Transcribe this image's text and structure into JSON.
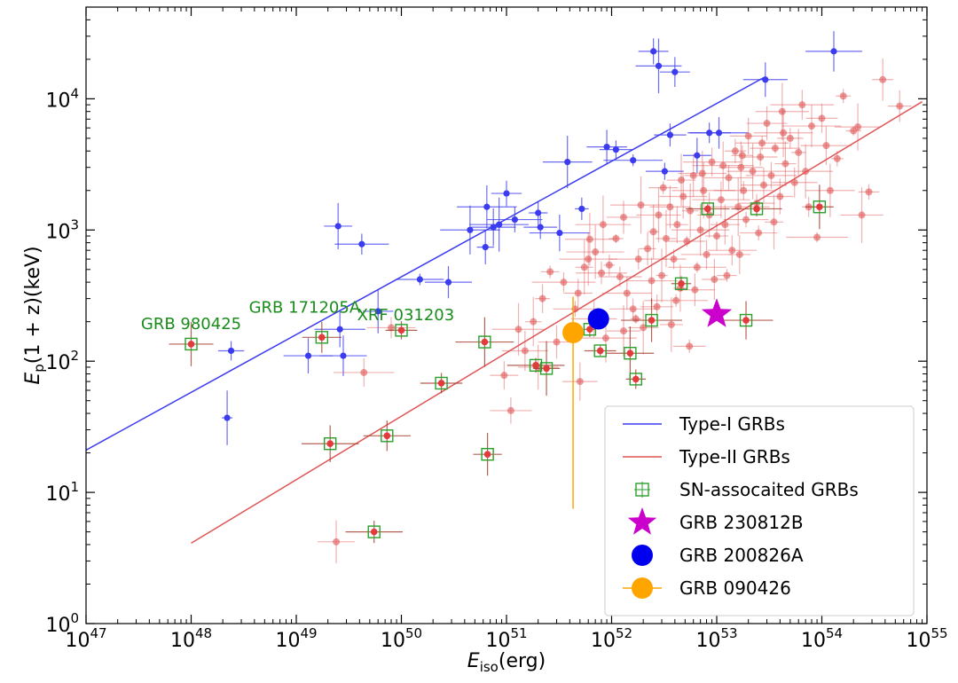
{
  "chart_data": {
    "type": "scatter",
    "x_scale": "log",
    "y_scale": "log",
    "xlim": [
      1e+47,
      1e+55
    ],
    "ylim": [
      1,
      50000
    ],
    "grid": false,
    "legend_position": "lower-right",
    "x_ticks": [
      {
        "value": 1e+47,
        "mantissa": "10",
        "exp": "47"
      },
      {
        "value": 1e+48,
        "mantissa": "10",
        "exp": "48"
      },
      {
        "value": 1e+49,
        "mantissa": "10",
        "exp": "49"
      },
      {
        "value": 1e+50,
        "mantissa": "10",
        "exp": "50"
      },
      {
        "value": 1e+51,
        "mantissa": "10",
        "exp": "51"
      },
      {
        "value": 1e+52,
        "mantissa": "10",
        "exp": "52"
      },
      {
        "value": 1e+53,
        "mantissa": "10",
        "exp": "53"
      },
      {
        "value": 1e+54,
        "mantissa": "10",
        "exp": "54"
      },
      {
        "value": 1e+55,
        "mantissa": "10",
        "exp": "55"
      }
    ],
    "y_ticks": [
      {
        "value": 1,
        "mantissa": "10",
        "exp": "0"
      },
      {
        "value": 10,
        "mantissa": "10",
        "exp": "1"
      },
      {
        "value": 100,
        "mantissa": "10",
        "exp": "2"
      },
      {
        "value": 1000,
        "mantissa": "10",
        "exp": "3"
      },
      {
        "value": 10000,
        "mantissa": "10",
        "exp": "4"
      }
    ],
    "xlabel": {
      "main": "E",
      "sub": "iso",
      "rest": "(erg)"
    },
    "ylabel": {
      "main": "E",
      "sub": "p",
      "rest": "(1 + z)(keV)"
    },
    "lines": [
      {
        "name": "Type-I GRBs",
        "color": "#3b3bf0",
        "x": [
          1e+47,
          2.8e+53
        ],
        "y": [
          21,
          14500
        ]
      },
      {
        "name": "Type-II GRBs",
        "color": "#e05555",
        "x": [
          1e+48,
          9e+54
        ],
        "y": [
          4.1,
          9500
        ]
      }
    ],
    "series": [
      {
        "name": "Type-I",
        "color": "#3b3bf0",
        "points": [
          [
            2.2e+48,
            37
          ],
          [
            2.4e+48,
            120
          ],
          [
            1.3e+49,
            110
          ],
          [
            2.5e+49,
            1070
          ],
          [
            2.6e+49,
            175
          ],
          [
            2.8e+49,
            110
          ],
          [
            4.2e+49,
            780
          ],
          [
            6e+49,
            240
          ],
          [
            1.5e+50,
            420
          ],
          [
            2.8e+50,
            400
          ],
          [
            4.5e+50,
            1000
          ],
          [
            6.3e+50,
            740
          ],
          [
            6.5e+50,
            1500
          ],
          [
            7.5e+50,
            1050
          ],
          [
            8.5e+50,
            1100
          ],
          [
            1e+51,
            1900
          ],
          [
            1.2e+51,
            1200
          ],
          [
            2e+51,
            1350
          ],
          [
            2.1e+51,
            1050
          ],
          [
            3.2e+51,
            950
          ],
          [
            3.8e+51,
            3300
          ],
          [
            5.2e+51,
            1450
          ],
          [
            9e+51,
            4300
          ],
          [
            1.1e+52,
            4100
          ],
          [
            1.6e+52,
            3400
          ],
          [
            2.5e+52,
            23000
          ],
          [
            2.8e+52,
            17800
          ],
          [
            3.2e+52,
            2800
          ],
          [
            3.6e+52,
            5300
          ],
          [
            4e+52,
            16000
          ],
          [
            6.5e+52,
            3700
          ],
          [
            8.5e+52,
            5500
          ],
          [
            1.05e+53,
            5500
          ],
          [
            1.3e+54,
            23000
          ],
          [
            2.9e+53,
            14000
          ]
        ]
      },
      {
        "name": "Type-II",
        "color": "#e05555",
        "points": [
          [
            2.4e+49,
            4.2
          ],
          [
            4.4e+49,
            82
          ],
          [
            8e+49,
            180
          ],
          [
            1.1e+51,
            42
          ],
          [
            9.5e+50,
            78
          ],
          [
            1.3e+51,
            175
          ],
          [
            1.8e+51,
            200
          ],
          [
            2.2e+51,
            300
          ],
          [
            2.6e+51,
            480
          ],
          [
            3.5e+51,
            400
          ],
          [
            4.5e+51,
            250
          ],
          [
            5e+51,
            70
          ],
          [
            5.5e+51,
            520
          ],
          [
            6e+51,
            600
          ],
          [
            7e+51,
            680
          ],
          [
            8e+51,
            470
          ],
          [
            9.5e+51,
            540
          ],
          [
            1.1e+52,
            860
          ],
          [
            1.2e+52,
            440
          ],
          [
            1.4e+52,
            330
          ],
          [
            1.6e+52,
            250
          ],
          [
            1.8e+52,
            600
          ],
          [
            2e+52,
            180
          ],
          [
            2.2e+52,
            720
          ],
          [
            2.5e+52,
            970
          ],
          [
            2.8e+52,
            1300
          ],
          [
            3e+52,
            450
          ],
          [
            3.3e+52,
            860
          ],
          [
            3.6e+52,
            1500
          ],
          [
            3.9e+52,
            600
          ],
          [
            4.2e+52,
            1100
          ],
          [
            4.5e+52,
            360
          ],
          [
            4.8e+52,
            1800
          ],
          [
            5.2e+52,
            820
          ],
          [
            5.6e+52,
            1400
          ],
          [
            6e+52,
            2600
          ],
          [
            6.5e+52,
            520
          ],
          [
            7e+52,
            1000
          ],
          [
            7.5e+52,
            2000
          ],
          [
            8e+52,
            650
          ],
          [
            8.5e+52,
            1300
          ],
          [
            9e+52,
            3300
          ],
          [
            1e+53,
            900
          ],
          [
            1.1e+53,
            1700
          ],
          [
            1.2e+53,
            1100
          ],
          [
            1.3e+53,
            2500
          ],
          [
            1.4e+53,
            700
          ],
          [
            1.5e+53,
            4000
          ],
          [
            1.6e+53,
            1500
          ],
          [
            1.7e+53,
            3000
          ],
          [
            1.8e+53,
            2000
          ],
          [
            1.9e+53,
            1200
          ],
          [
            2e+53,
            5200
          ],
          [
            2.2e+53,
            2800
          ],
          [
            2.4e+53,
            1600
          ],
          [
            2.6e+53,
            3600
          ],
          [
            2.8e+53,
            2200
          ],
          [
            3e+53,
            6500
          ],
          [
            3.3e+53,
            2600
          ],
          [
            3.6e+53,
            4200
          ],
          [
            4e+53,
            1800
          ],
          [
            4.5e+53,
            3200
          ],
          [
            5e+53,
            5000
          ],
          [
            5.5e+53,
            2300
          ],
          [
            6e+53,
            3900
          ],
          [
            7e+53,
            2800
          ],
          [
            8e+53,
            6200
          ],
          [
            9e+53,
            880
          ],
          [
            1.1e+54,
            4400
          ],
          [
            1.2e+54,
            2000
          ],
          [
            1.4e+54,
            3500
          ],
          [
            1.6e+54,
            10500
          ],
          [
            2e+54,
            5700
          ],
          [
            2.4e+54,
            1300
          ],
          [
            2.8e+54,
            1950
          ],
          [
            3.8e+54,
            14000
          ],
          [
            5.5e+54,
            8800
          ],
          [
            6.5e+53,
            9000
          ],
          [
            2.2e+54,
            6100
          ],
          [
            1e+54,
            7100
          ],
          [
            7.5e+53,
            1500
          ],
          [
            4.2e+53,
            8000
          ],
          [
            3.5e+53,
            1150
          ],
          [
            2.5e+53,
            950
          ],
          [
            1.65e+53,
            650
          ],
          [
            1.25e+53,
            450
          ],
          [
            9.5e+52,
            420
          ],
          [
            6.2e+52,
            350
          ],
          [
            4.1e+52,
            290
          ],
          [
            2.7e+52,
            260
          ],
          [
            1.7e+52,
            210
          ],
          [
            5.5e+52,
            130
          ],
          [
            3.7e+52,
            190
          ],
          [
            2.4e+52,
            410
          ],
          [
            1.3e+52,
            170
          ],
          [
            8.8e+51,
            150
          ],
          [
            6.8e+51,
            210
          ],
          [
            4.8e+51,
            330
          ],
          [
            3e+51,
            140
          ],
          [
            2e+51,
            90
          ],
          [
            1.5e+51,
            120
          ],
          [
            6.2e+51,
            850
          ],
          [
            8.3e+51,
            1100
          ],
          [
            1.3e+52,
            1250
          ],
          [
            1.9e+52,
            1550
          ],
          [
            3.1e+52,
            2100
          ],
          [
            4.6e+52,
            2400
          ],
          [
            7.3e+52,
            2700
          ],
          [
            1.15e+53,
            3100
          ],
          [
            1.75e+53,
            3700
          ],
          [
            2.7e+53,
            4600
          ],
          [
            4.3e+53,
            5500
          ]
        ]
      },
      {
        "name": "SN-assocaited GRBs",
        "color": "#2aa02a",
        "points": [
          [
            1e+48,
            135
          ],
          [
            1.75e+49,
            152
          ],
          [
            2.1e+49,
            23.5
          ],
          [
            5.5e+49,
            5
          ],
          [
            7.3e+49,
            27
          ],
          [
            1e+50,
            172
          ],
          [
            2.4e+50,
            68
          ],
          [
            6.2e+50,
            140
          ],
          [
            6.6e+50,
            19.5
          ],
          [
            1.9e+51,
            93
          ],
          [
            2.4e+51,
            88
          ],
          [
            6.2e+51,
            175
          ],
          [
            7.8e+51,
            120
          ],
          [
            1.5e+52,
            115
          ],
          [
            1.7e+52,
            73
          ],
          [
            2.4e+52,
            205
          ],
          [
            4.6e+52,
            390
          ],
          [
            8.2e+52,
            1450
          ],
          [
            1.9e+53,
            205
          ],
          [
            2.4e+53,
            1450
          ],
          [
            9.5e+53,
            1500
          ]
        ]
      },
      {
        "name": "GRB 230812B",
        "color": "#cc00cc",
        "marker": "star",
        "points": [
          [
            1e+53,
            228
          ]
        ]
      },
      {
        "name": "GRB 200826A",
        "color": "#0000ee",
        "marker": "circle",
        "points": [
          [
            7.5e+51,
            210
          ]
        ]
      },
      {
        "name": "GRB 090426",
        "color": "#ffa500",
        "marker": "circle",
        "points": [
          [
            4.3e+51,
            165
          ]
        ],
        "y_err": [
          7.5,
          310
        ]
      }
    ],
    "annotations": [
      {
        "text": "GRB 980425",
        "x": 1e+48,
        "y": 175
      },
      {
        "text": "GRB 171205A",
        "x": 1.2e+49,
        "y": 235
      },
      {
        "text": "XRF 031203",
        "x": 1.1e+50,
        "y": 205
      }
    ],
    "legend": [
      {
        "label": "Type-I GRBs",
        "kind": "line",
        "color": "#3b3bf0"
      },
      {
        "label": "Type-II GRBs",
        "kind": "line",
        "color": "#e05555"
      },
      {
        "label": "SN-assocaited GRBs",
        "kind": "square",
        "color": "#2aa02a"
      },
      {
        "label": "GRB 230812B",
        "kind": "star",
        "color": "#cc00cc"
      },
      {
        "label": "GRB 200826A",
        "kind": "circle",
        "color": "#0000ee"
      },
      {
        "label": "GRB 090426",
        "kind": "circle-line",
        "color": "#ffa500"
      }
    ]
  }
}
